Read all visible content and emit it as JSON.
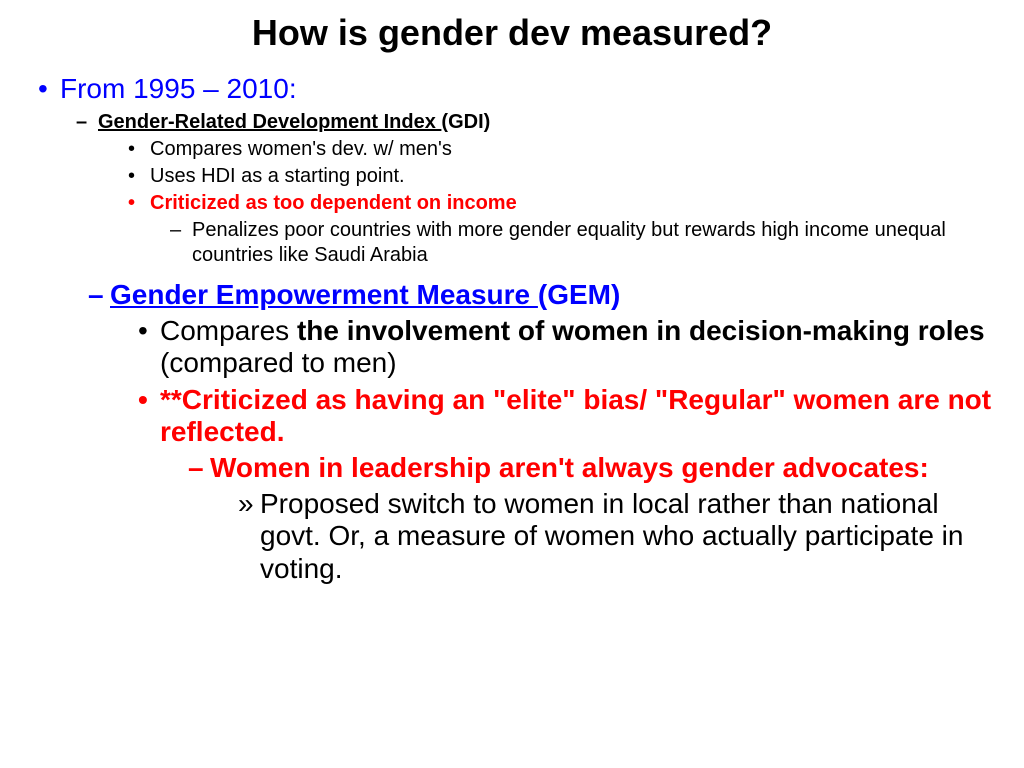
{
  "title": "How is gender dev measured?",
  "colors": {
    "blue": "#0000ff",
    "red": "#ff0000",
    "black": "#000000",
    "background": "#ffffff"
  },
  "lvl1_text": "From 1995 – 2010:",
  "gdi": {
    "heading_underlined": "Gender-Related Development Index ",
    "heading_rest": "(GDI)",
    "pt1": "Compares women's dev. w/ men's",
    "pt2": "Uses HDI as a starting point.",
    "pt3": "Criticized as too dependent on income",
    "sub": "Penalizes poor countries with more gender equality but rewards high income unequal countries like Saudi Arabia"
  },
  "gem": {
    "heading_underlined": "Gender Empowerment Measure ",
    "heading_rest": "(GEM)",
    "pt1_prefix": "Compares ",
    "pt1_bold": "the involvement of women in decision-making roles",
    "pt1_suffix": " (compared to men)",
    "pt2": "**Criticized as having an \"elite\" bias/ \"Regular\" women are not reflected.",
    "sub1": "Women in leadership aren't always gender advocates:",
    "sub2": "Proposed switch to women in local rather than national govt. Or, a measure of women who actually participate in voting."
  }
}
